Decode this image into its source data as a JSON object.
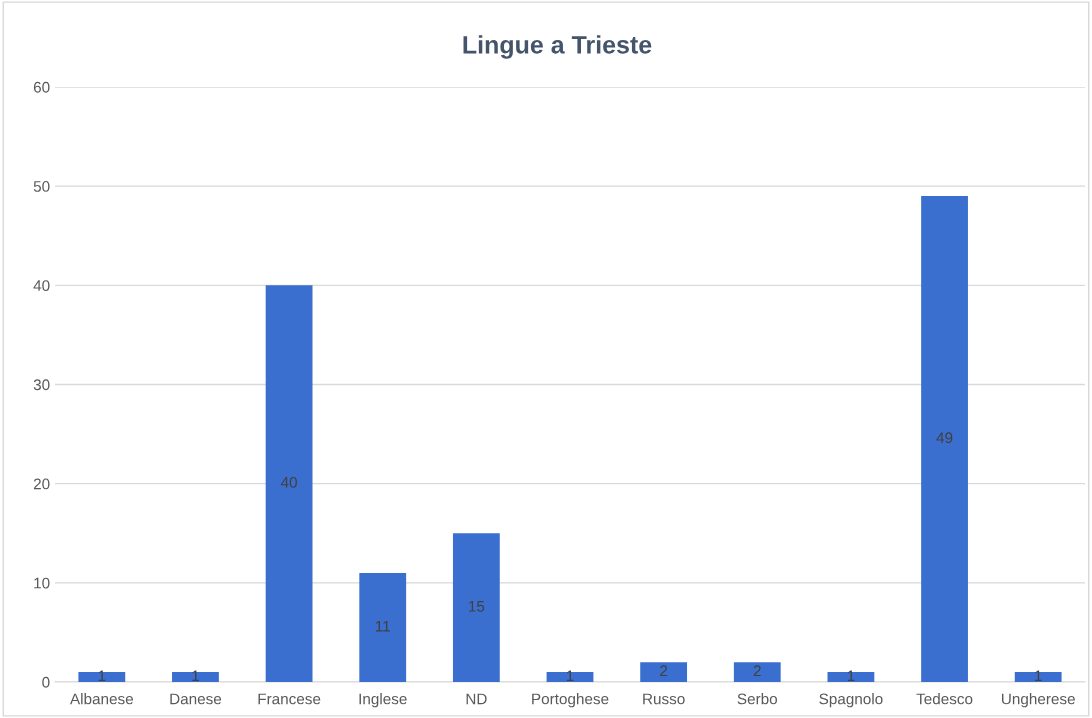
{
  "chart_data": {
    "type": "bar",
    "title": "Lingue a Trieste",
    "categories": [
      "Albanese",
      "Danese",
      "Francese",
      "Inglese",
      "ND",
      "Portoghese",
      "Russo",
      "Serbo",
      "Spagnolo",
      "Tedesco",
      "Ungherese"
    ],
    "values": [
      1,
      1,
      40,
      11,
      15,
      1,
      2,
      2,
      1,
      49,
      1
    ],
    "color": "#3a6fcf",
    "ylim": [
      0,
      60
    ],
    "yticks": [
      0,
      10,
      20,
      30,
      40,
      50,
      60
    ],
    "grid": "y",
    "data_labels": true
  }
}
